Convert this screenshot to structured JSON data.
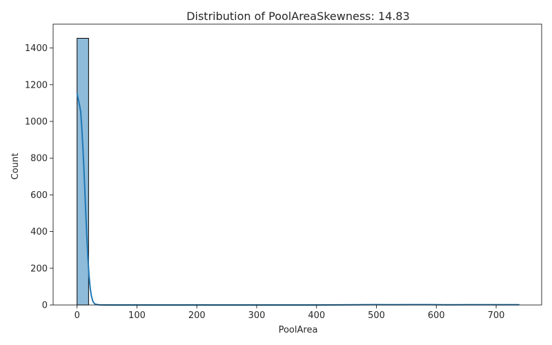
{
  "chart_data": {
    "type": "histogram",
    "title": "Distribution of PoolAreaSkewness: 14.83",
    "xlabel": "PoolArea",
    "ylabel": "Count",
    "xlim": [
      -40,
      776
    ],
    "ylim": [
      0,
      1530
    ],
    "x_ticks": [
      0,
      100,
      200,
      300,
      400,
      500,
      600,
      700
    ],
    "y_ticks": [
      0,
      200,
      400,
      600,
      800,
      1000,
      1200,
      1400
    ],
    "bins": {
      "edges": [
        0,
        19.2,
        38.4,
        57.6,
        76.8,
        96,
        115.2,
        134.4,
        153.6,
        172.8,
        192,
        211.2,
        230.4,
        249.6,
        268.8,
        288,
        307.2,
        326.4,
        345.6,
        364.8,
        384,
        403.2,
        422.4,
        441.6,
        460.8,
        480,
        499.2,
        518.4,
        537.6,
        556.8,
        576,
        595.2,
        614.4,
        633.6,
        652.8,
        672,
        691.2,
        710.4,
        729.6,
        738
      ],
      "counts": [
        1453,
        0,
        0,
        0,
        0,
        0,
        0,
        0,
        0,
        0,
        0,
        0,
        0,
        0,
        0,
        0,
        0,
        0,
        0,
        0,
        0,
        0,
        0,
        0,
        0,
        1,
        1,
        1,
        0,
        1,
        1,
        0,
        0,
        0,
        1,
        0,
        0,
        0,
        1
      ]
    },
    "kde": {
      "x": [
        0,
        2,
        4,
        6,
        8,
        10,
        12,
        14,
        16,
        18,
        20,
        22,
        24,
        26,
        28,
        30,
        35,
        40,
        50,
        100,
        200,
        300,
        400,
        480,
        500,
        520,
        560,
        590,
        620,
        650,
        700,
        738
      ],
      "y": [
        1150,
        1120,
        1090,
        1055,
        960,
        840,
        700,
        540,
        390,
        260,
        160,
        90,
        48,
        24,
        11,
        5,
        1.5,
        0.5,
        0,
        0,
        0,
        0,
        0,
        1.5,
        2,
        1.5,
        2,
        2,
        1,
        1.5,
        1.5,
        1.5
      ]
    },
    "grid": false,
    "bar_color": "#8ebbd9",
    "bar_edge_color": "#000000",
    "kde_color": "#1f77b4"
  }
}
